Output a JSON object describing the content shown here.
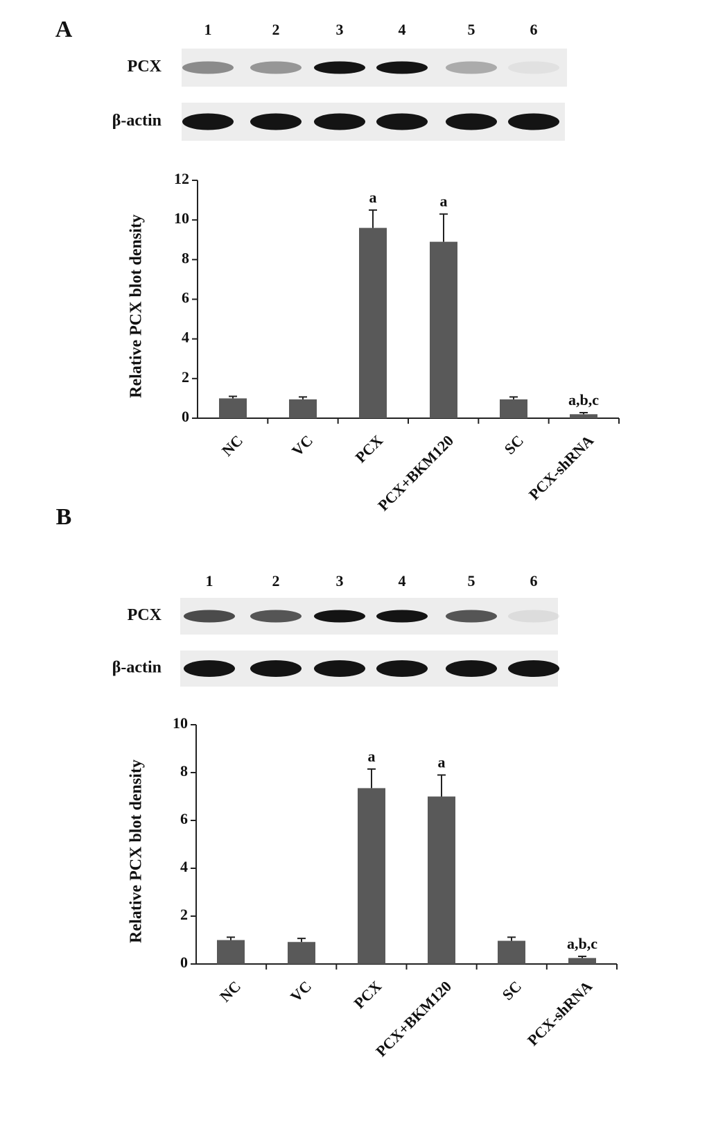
{
  "chart_data": [
    {
      "type": "bar",
      "panel": "A",
      "lanes": [
        "1",
        "2",
        "3",
        "4",
        "5",
        "6"
      ],
      "blot_rows": [
        "PCX",
        "β-actin"
      ],
      "y_label": "Relative PCX blot density",
      "categories": [
        "NC",
        "VC",
        "PCX",
        "PCX+BKM120",
        "SC",
        "PCX-shRNA"
      ],
      "values": [
        1.0,
        0.95,
        9.6,
        8.9,
        0.95,
        0.2
      ],
      "errors": [
        0.1,
        0.12,
        0.9,
        1.4,
        0.12,
        0.08
      ],
      "annotations": [
        null,
        null,
        "a",
        "a",
        null,
        "a,b,c"
      ],
      "ylim": [
        0,
        12
      ],
      "yticks": [
        0,
        2,
        4,
        6,
        8,
        10,
        12
      ],
      "color": "#595959"
    },
    {
      "type": "bar",
      "panel": "B",
      "lanes": [
        "1",
        "2",
        "3",
        "4",
        "5",
        "6"
      ],
      "blot_rows": [
        "PCX",
        "β-actin"
      ],
      "y_label": "Relative PCX blot density",
      "categories": [
        "NC",
        "VC",
        "PCX",
        "PCX+BKM120",
        "SC",
        "PCX-shRNA"
      ],
      "values": [
        1.0,
        0.92,
        7.35,
        7.0,
        0.97,
        0.25
      ],
      "errors": [
        0.12,
        0.15,
        0.8,
        0.9,
        0.15,
        0.07
      ],
      "annotations": [
        null,
        null,
        "a",
        "a",
        null,
        "a,b,c"
      ],
      "ylim": [
        0,
        10
      ],
      "yticks": [
        0,
        2,
        4,
        6,
        8,
        10
      ],
      "color": "#595959"
    }
  ]
}
